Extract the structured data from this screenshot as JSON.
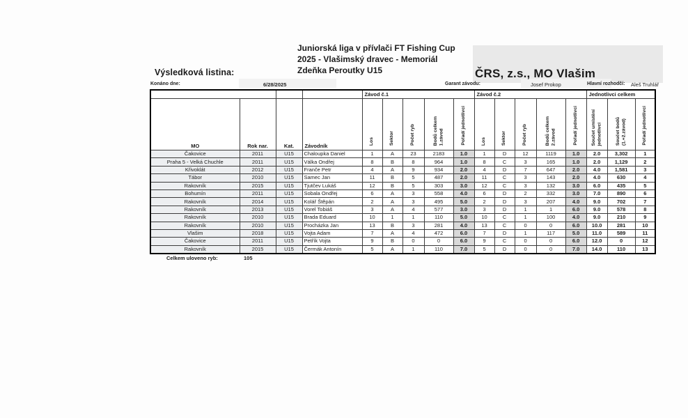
{
  "header": {
    "doc_label": "Výsledková listina:",
    "event_title": "Juniorská liga v přívlači FT Fishing Cup\n2025 - Vlašimský dravec - Memoriál\nZdeňka Peroutky U15",
    "organization": "ČRS, z.s., MO Vlašim"
  },
  "meta": {
    "konano_label": "Konáno dne:",
    "konano_value": "6/28/2025",
    "garant_label": "Garant závodu:",
    "garant_value": "Josef Prokop",
    "rozhodci_label": "Hlavní rozhodčí:",
    "rozhodci_value": "Aleš Truhlář"
  },
  "table": {
    "top_band": [
      {
        "label": "",
        "span": 2
      },
      {
        "label": "",
        "span": 1
      },
      {
        "label": "",
        "span": 1
      },
      {
        "label": "Závod č.1",
        "span": 5
      },
      {
        "label": "Závod č.2",
        "span": 5
      },
      {
        "label": "Jednotlivci celkem",
        "span": 3
      }
    ],
    "columns": [
      {
        "label": "MO"
      },
      {
        "label": "Rok nar."
      },
      {
        "label": "Kat."
      },
      {
        "label": "Závodník"
      },
      {
        "label": "Los",
        "rot": true
      },
      {
        "label": "Sektor",
        "rot": true
      },
      {
        "label": "Počet ryb",
        "rot": true
      },
      {
        "label": "Bodů celkem\n1.závod",
        "rot": true
      },
      {
        "label": "Pořadí jednotlivci",
        "rot": true
      },
      {
        "label": "Los",
        "rot": true
      },
      {
        "label": "Sektor",
        "rot": true
      },
      {
        "label": "Počet ryb",
        "rot": true
      },
      {
        "label": "Bodů celkem\n2.závod",
        "rot": true
      },
      {
        "label": "Pořadí jednotlivci",
        "rot": true
      },
      {
        "label": "Součet umístění\njednotlivci",
        "rot": true
      },
      {
        "label": "Součet bodů\n(1.+2.závod)",
        "rot": true
      },
      {
        "label": "Pořadí jednotlivci",
        "rot": true
      }
    ],
    "rows": [
      [
        "Čakovice",
        "2011",
        "U15",
        "Chaloupka Daniel",
        "1",
        "A",
        "23",
        "2183",
        "1.0",
        "1",
        "D",
        "12",
        "1119",
        "1.0",
        "2.0",
        "3,302",
        "1"
      ],
      [
        "Praha 5 - Velká Chuchle",
        "2011",
        "U15",
        "Válka Ondřej",
        "8",
        "B",
        "8",
        "964",
        "1.0",
        "8",
        "C",
        "3",
        "165",
        "1.0",
        "2.0",
        "1,129",
        "2"
      ],
      [
        "Křivoklát",
        "2012",
        "U15",
        "Franče Petr",
        "4",
        "A",
        "9",
        "934",
        "2.0",
        "4",
        "D",
        "7",
        "647",
        "2.0",
        "4.0",
        "1,581",
        "3"
      ],
      [
        "Tábor",
        "2010",
        "U15",
        "Samec Jan",
        "11",
        "B",
        "5",
        "487",
        "2.0",
        "11",
        "C",
        "3",
        "143",
        "2.0",
        "4.0",
        "630",
        "4"
      ],
      [
        "Rakovník",
        "2015",
        "U15",
        "Tjutčev Lukáš",
        "12",
        "B",
        "5",
        "303",
        "3.0",
        "12",
        "C",
        "3",
        "132",
        "3.0",
        "6.0",
        "435",
        "5"
      ],
      [
        "Bohumín",
        "2011",
        "U15",
        "Sobala Ondřej",
        "6",
        "A",
        "3",
        "558",
        "4.0",
        "6",
        "D",
        "2",
        "332",
        "3.0",
        "7.0",
        "890",
        "6"
      ],
      [
        "Rakovník",
        "2014",
        "U15",
        "Kolář Štěpán",
        "2",
        "A",
        "3",
        "495",
        "5.0",
        "2",
        "D",
        "3",
        "207",
        "4.0",
        "9.0",
        "702",
        "7"
      ],
      [
        "Rakovník",
        "2013",
        "U15",
        "Vorel Tobiáš",
        "3",
        "A",
        "4",
        "577",
        "3.0",
        "3",
        "D",
        "1",
        "1",
        "6.0",
        "9.0",
        "578",
        "8"
      ],
      [
        "Rakovník",
        "2010",
        "U15",
        "Brada Eduard",
        "10",
        "1",
        "1",
        "110",
        "5.0",
        "10",
        "C",
        "1",
        "100",
        "4.0",
        "9.0",
        "210",
        "9"
      ],
      [
        "Rakovník",
        "2010",
        "U15",
        "Procházka Jan",
        "13",
        "B",
        "3",
        "281",
        "4.0",
        "13",
        "C",
        "0",
        "0",
        "6.0",
        "10.0",
        "281",
        "10"
      ],
      [
        "Vlašim",
        "2018",
        "U15",
        "Vojta Adam",
        "7",
        "A",
        "4",
        "472",
        "6.0",
        "7",
        "D",
        "1",
        "117",
        "5.0",
        "11.0",
        "589",
        "11"
      ],
      [
        "Čakovice",
        "2011",
        "U15",
        "Petřík Vojta",
        "9",
        "B",
        "0",
        "0",
        "6.0",
        "9",
        "C",
        "0",
        "0",
        "6.0",
        "12.0",
        "0",
        "12"
      ],
      [
        "Rakovník",
        "2015",
        "U15",
        "Čermák Antonín",
        "5",
        "A",
        "1",
        "110",
        "7.0",
        "5",
        "D",
        "0",
        "0",
        "7.0",
        "14.0",
        "110",
        "13"
      ]
    ]
  },
  "summary": {
    "label": "Celkem uloveno ryb:",
    "value": "105"
  },
  "colors": {
    "rank_cell_bg": "#d9d9d9",
    "left_columns_bg": "#edeff1",
    "scan_shadow": "#e9e9e9",
    "table_border": "#000000"
  }
}
